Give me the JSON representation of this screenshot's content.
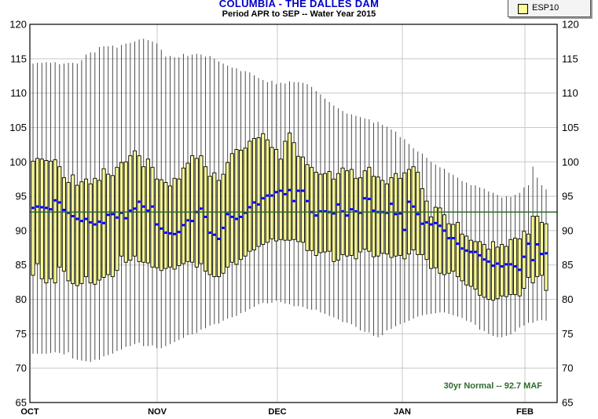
{
  "chart_data": {
    "type": "boxplot",
    "title": "COLUMBIA - THE DALLES DAM",
    "subtitle": "Period   APR to SEP  --  Water Year 2015",
    "legend": {
      "entries": [
        "ESP10"
      ],
      "placement": "top-right"
    },
    "colors": {
      "box": "#ffff99",
      "median": "#0000ff",
      "normal_line": "#2d6b2d",
      "annotation": "#2d6b2d"
    },
    "x_ticks": [
      "OCT",
      "NOV",
      "DEC",
      "JAN",
      "FEB"
    ],
    "ylim": [
      65,
      120
    ],
    "y_ticks": [
      65,
      70,
      75,
      80,
      85,
      90,
      95,
      100,
      105,
      110,
      115,
      120
    ],
    "grid": true,
    "normal": {
      "value": 92.7,
      "label": "30yr Normal -- 92.7 MAF"
    },
    "series": [
      {
        "name": "ESP10",
        "median": [
          93.3,
          93.5,
          93.4,
          93.3,
          93.1,
          94.4,
          94.1,
          93.0,
          92.6,
          92.1,
          91.7,
          91.4,
          91.7,
          91.2,
          90.9,
          91.3,
          91.1,
          92.3,
          92.4,
          91.9,
          92.6,
          91.8,
          92.9,
          93.2,
          94.2,
          93.5,
          92.9,
          93.5,
          90.9,
          90.3,
          89.7,
          89.6,
          89.5,
          89.8,
          90.8,
          91.5,
          91.4,
          92.7,
          93.2,
          92.0,
          89.7,
          89.4,
          88.8,
          90.4,
          92.4,
          92.0,
          91.7,
          92.0,
          92.6,
          93.4,
          94.1,
          93.8,
          94.7,
          95.1,
          95.1,
          95.6,
          95.8,
          95.3,
          95.9,
          94.3,
          95.8,
          95.8,
          94.3,
          92.7,
          92.2,
          92.8,
          92.8,
          92.7,
          92.5,
          93.8,
          92.8,
          92.2,
          93.1,
          92.8,
          92.6,
          94.7,
          94.6,
          92.9,
          92.7,
          92.7,
          92.6,
          93.9,
          92.4,
          92.5,
          90.1,
          94.2,
          93.5,
          92.4,
          91.0,
          91.2,
          90.9,
          91.1,
          90.7,
          90.0,
          88.9,
          88.9,
          88.1,
          87.4,
          87.1,
          86.9,
          86.9,
          86.4,
          85.8,
          85.5,
          84.9,
          85.2,
          84.8,
          85.1,
          85.1,
          84.8,
          84.3,
          86.2,
          88.1,
          85.7,
          88.0,
          86.6,
          86.7
        ],
        "q_low": [
          83.5,
          85.2,
          83.0,
          82.4,
          83.0,
          82.4,
          84.7,
          84.1,
          82.7,
          82.3,
          82.0,
          82.3,
          83.3,
          82.4,
          82.2,
          82.8,
          83.2,
          83.6,
          83.3,
          84.2,
          86.3,
          85.4,
          85.7,
          86.3,
          85.5,
          85.4,
          85.3,
          84.7,
          84.6,
          84.2,
          84.5,
          84.7,
          84.4,
          84.9,
          85.2,
          85.5,
          85.4,
          84.7,
          85.2,
          84.1,
          83.6,
          83.3,
          83.3,
          83.8,
          84.7,
          85.4,
          85.1,
          85.8,
          86.3,
          87.0,
          87.2,
          87.7,
          88.0,
          88.3,
          88.8,
          88.5,
          88.7,
          88.6,
          88.6,
          88.7,
          88.4,
          88.3,
          87.1,
          87.1,
          86.4,
          86.8,
          86.9,
          87.0,
          85.5,
          85.7,
          86.5,
          86.3,
          86.4,
          85.9,
          86.9,
          87.3,
          87.0,
          86.2,
          86.3,
          86.7,
          86.6,
          86.1,
          86.3,
          86.4,
          85.9,
          86.6,
          87.2,
          86.5,
          86.5,
          85.8,
          84.5,
          84.6,
          83.8,
          83.6,
          83.8,
          84.1,
          83.3,
          82.7,
          82.1,
          81.9,
          81.5,
          80.6,
          80.3,
          80.0,
          79.9,
          80.1,
          80.5,
          80.4,
          80.7,
          80.7,
          80.5,
          81.6,
          83.2,
          82.4,
          83.3,
          83.5,
          81.3
        ],
        "q_high": [
          100.1,
          100.5,
          100.4,
          100.2,
          100.1,
          100.3,
          99.3,
          97.7,
          97.0,
          98.1,
          96.6,
          97.1,
          97.5,
          96.8,
          97.6,
          97.3,
          99.0,
          98.2,
          98.0,
          99.2,
          99.9,
          100.0,
          100.9,
          101.6,
          100.9,
          99.3,
          100.4,
          99.2,
          97.5,
          97.4,
          97.0,
          96.5,
          97.6,
          97.5,
          99.1,
          99.8,
          100.9,
          100.5,
          100.9,
          99.3,
          97.9,
          98.4,
          97.3,
          98.2,
          99.9,
          101.2,
          101.8,
          101.7,
          102.0,
          103.0,
          103.4,
          103.5,
          104.1,
          103.2,
          102.1,
          101.8,
          100.4,
          103.0,
          104.2,
          102.8,
          100.8,
          100.7,
          99.6,
          99.2,
          98.5,
          98.2,
          98.3,
          98.6,
          97.5,
          98.3,
          99.1,
          98.7,
          98.9,
          97.6,
          97.7,
          98.7,
          99.2,
          97.9,
          97.8,
          97.3,
          96.8,
          97.7,
          98.3,
          97.6,
          98.4,
          98.9,
          99.3,
          98.5,
          96.1,
          94.3,
          92.0,
          93.4,
          93.3,
          92.3,
          91.0,
          90.9,
          91.2,
          89.5,
          89.2,
          88.6,
          88.4,
          88.4,
          88.0,
          87.3,
          88.4,
          87.6,
          88.0,
          87.7,
          88.7,
          88.9,
          88.8,
          89.9,
          89.5,
          92.1,
          92.1,
          91.2,
          91.0
        ],
        "whisker_low": [
          72.1,
          72.1,
          72.1,
          72.1,
          72.2,
          72.3,
          72.2,
          72.0,
          72.3,
          71.4,
          71.2,
          71.1,
          71.0,
          70.9,
          71.2,
          71.2,
          71.7,
          71.9,
          72.1,
          72.5,
          72.7,
          73.1,
          73.2,
          73.5,
          73.7,
          73.2,
          73.2,
          73.3,
          72.9,
          72.9,
          73.2,
          73.5,
          73.8,
          74.1,
          74.4,
          74.8,
          74.9,
          75.1,
          75.6,
          75.8,
          76.2,
          76.4,
          76.5,
          76.9,
          77.2,
          77.4,
          77.6,
          78.0,
          78.2,
          78.6,
          78.9,
          79.3,
          79.5,
          79.4,
          79.5,
          79.8,
          79.6,
          79.4,
          79.3,
          79.0,
          79.0,
          78.9,
          78.6,
          78.5,
          78.5,
          78.1,
          77.9,
          77.6,
          77.4,
          77.1,
          76.7,
          76.6,
          76.4,
          76.0,
          75.5,
          75.3,
          75.2,
          74.7,
          74.5,
          74.8,
          75.5,
          75.7,
          76.1,
          76.4,
          76.6,
          76.9,
          77.2,
          77.5,
          77.7,
          77.8,
          77.9,
          78.0,
          78.1,
          78.1,
          77.9,
          77.7,
          77.5,
          77.3,
          76.9,
          76.7,
          76.3,
          75.6,
          75.4,
          75.0,
          74.7,
          74.5,
          74.5,
          74.7,
          74.9,
          75.3,
          75.9,
          76.2,
          76.6,
          76.6,
          76.9,
          77.0,
          76.9
        ],
        "whisker_high": [
          114.3,
          114.4,
          114.4,
          114.5,
          114.4,
          114.5,
          114.2,
          114.3,
          114.4,
          114.4,
          114.3,
          114.8,
          115.6,
          115.9,
          115.9,
          116.7,
          116.8,
          116.8,
          116.9,
          116.6,
          117.0,
          117.2,
          117.3,
          117.5,
          117.8,
          117.9,
          117.7,
          117.5,
          117.2,
          116.3,
          115.3,
          115.4,
          115.2,
          115.2,
          115.7,
          115.4,
          115.6,
          115.7,
          115.6,
          115.3,
          115.4,
          115.0,
          114.6,
          114.3,
          114.0,
          113.7,
          113.6,
          113.2,
          113.2,
          113.0,
          112.6,
          112.2,
          111.9,
          111.6,
          111.8,
          111.3,
          111.5,
          111.4,
          111.7,
          111.6,
          111.6,
          111.5,
          111.3,
          110.9,
          110.3,
          109.8,
          109.2,
          108.7,
          108.2,
          107.8,
          107.4,
          107.0,
          106.9,
          106.7,
          106.5,
          106.3,
          106.2,
          105.7,
          105.8,
          105.4,
          105.1,
          104.7,
          104.4,
          103.6,
          103.3,
          102.6,
          102.0,
          101.5,
          101.2,
          100.6,
          100.0,
          99.6,
          99.2,
          99.0,
          98.4,
          98.1,
          97.7,
          97.2,
          97.0,
          96.6,
          96.6,
          96.3,
          96.1,
          95.7,
          95.5,
          95.2,
          94.8,
          95.0,
          94.9,
          95.2,
          95.5,
          96.3,
          96.6,
          99.3,
          97.7,
          96.6,
          96.0
        ]
      }
    ]
  }
}
